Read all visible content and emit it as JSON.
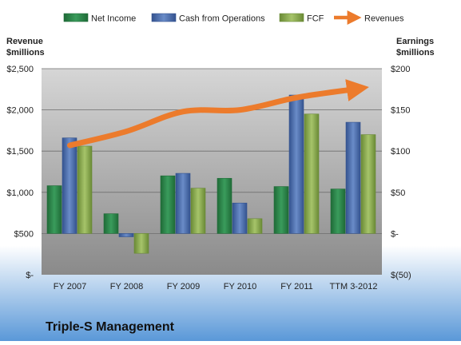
{
  "chart_data": {
    "type": "bar",
    "title": "Triple-S Management",
    "categories": [
      "FY 2007",
      "FY 2008",
      "FY 2009",
      "FY 2010",
      "FY 2011",
      "TTM 3-2012"
    ],
    "left_axis": {
      "label_line1": "Revenue",
      "label_line2": "$millions",
      "range": [
        0,
        2500
      ],
      "ticks": [
        0,
        500,
        1000,
        1500,
        2000,
        2500
      ],
      "tick_labels": [
        "$-",
        "$500",
        "$1,000",
        "$1,500",
        "$2,000",
        "$2,500"
      ]
    },
    "right_axis": {
      "label_line1": "Earnings",
      "label_line2": "$millions",
      "range": [
        -50,
        200
      ],
      "ticks": [
        -50,
        0,
        50,
        100,
        150,
        200
      ],
      "tick_labels": [
        "$(50)",
        "$-",
        "$50",
        "$100",
        "$150",
        "$200"
      ]
    },
    "series": [
      {
        "name": "Net Income",
        "axis": "right",
        "type": "bar",
        "color": "#2e8b4e",
        "values": [
          58,
          24,
          70,
          67,
          57,
          54
        ]
      },
      {
        "name": "Cash from Operations",
        "axis": "right",
        "type": "bar",
        "color": "#4f6fb0",
        "values": [
          116,
          -4,
          73,
          37,
          168,
          135
        ]
      },
      {
        "name": "FCF",
        "axis": "right",
        "type": "bar",
        "color": "#8aaa4e",
        "values": [
          106,
          -24,
          55,
          18,
          145,
          120
        ]
      },
      {
        "name": "Revenues",
        "axis": "left",
        "type": "line",
        "color": "#ec7b2c",
        "values": [
          1570,
          1740,
          1980,
          2000,
          2150,
          2250
        ]
      }
    ],
    "grid": true,
    "legend": "top"
  }
}
